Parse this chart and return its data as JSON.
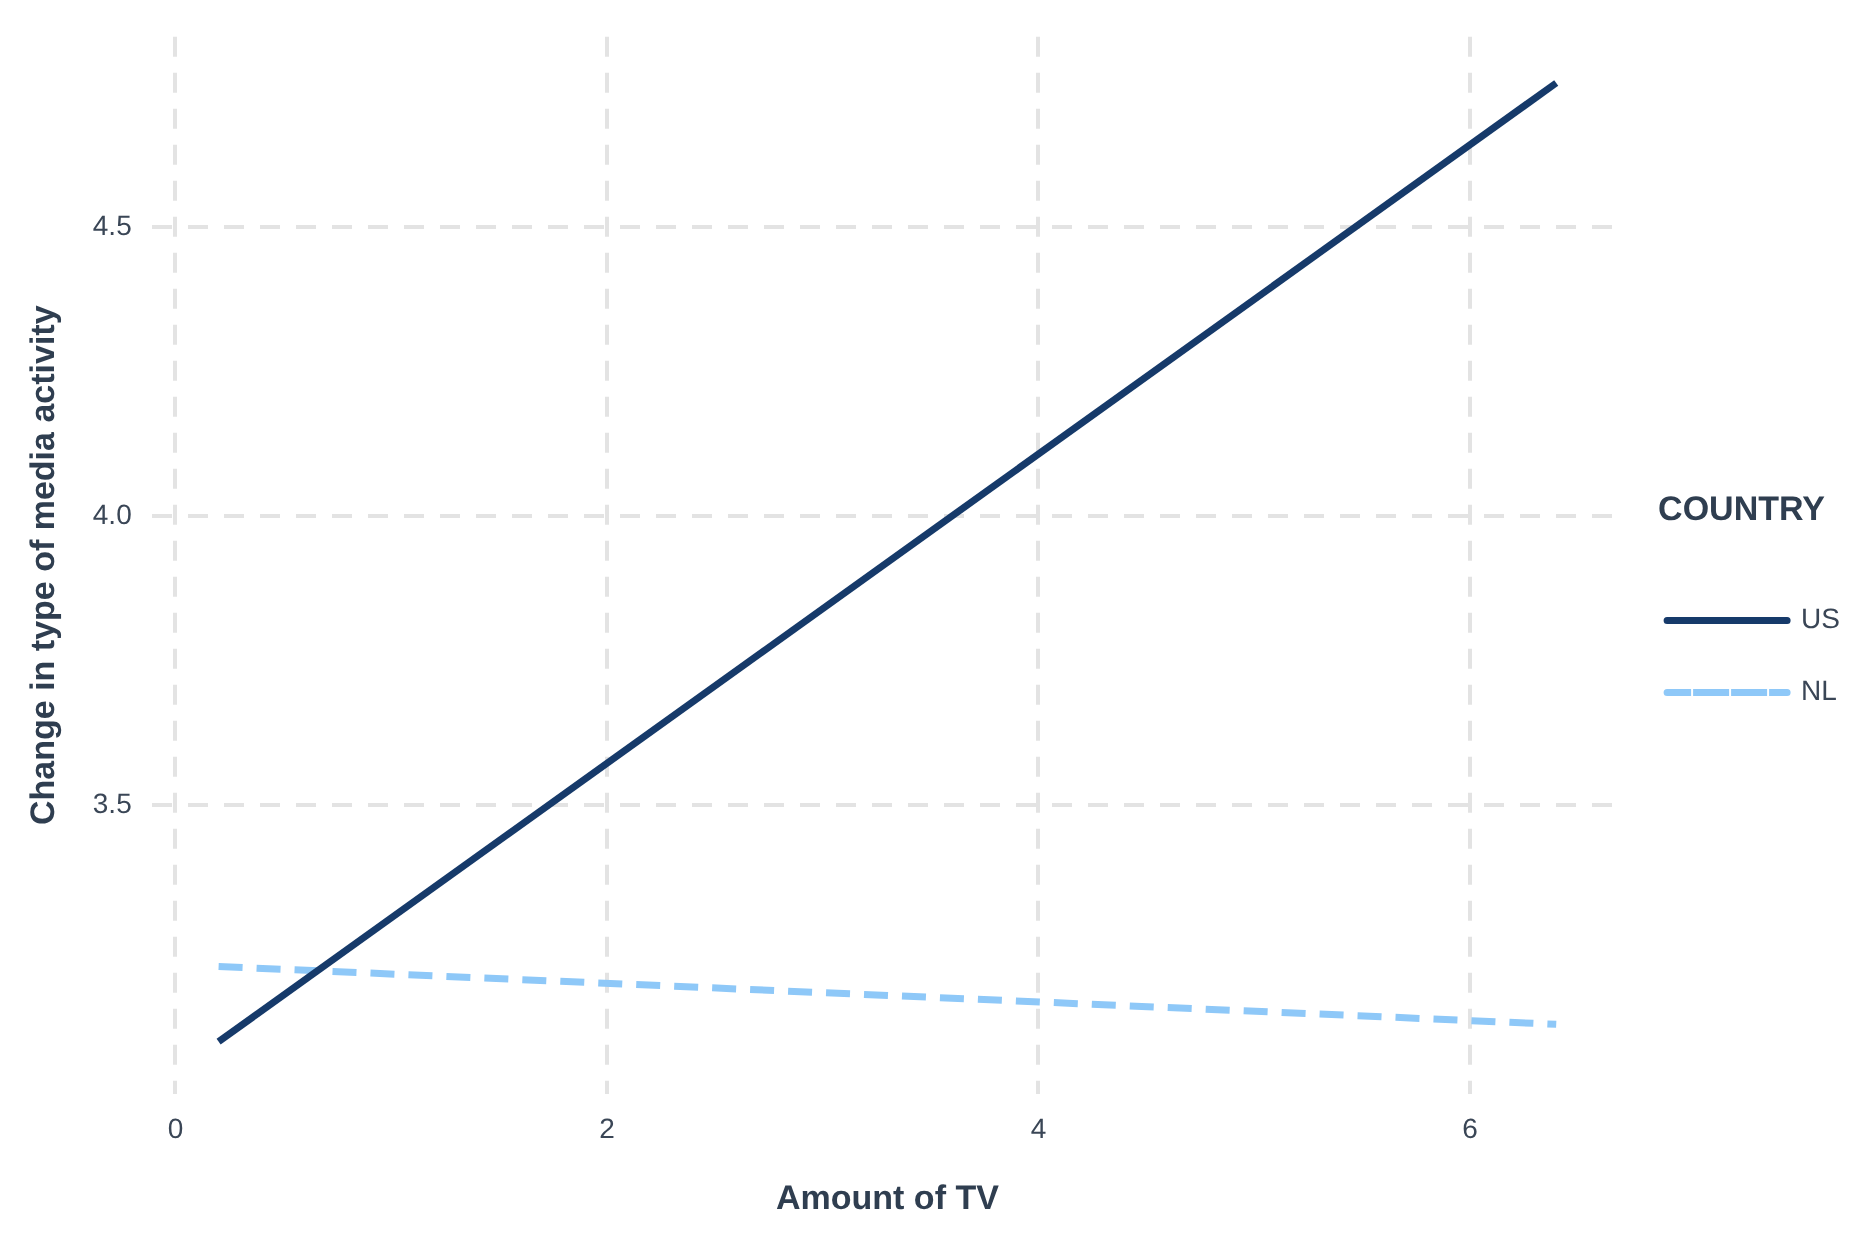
{
  "chart_data": {
    "type": "line",
    "xlabel": "Amount of TV",
    "ylabel": "Change in type of media activity",
    "legend_title": "COUNTRY",
    "legend": "right",
    "grid": true,
    "marker": "none",
    "xlim": [
      -0.11,
      6.71
    ],
    "xticks": [
      0,
      2,
      4,
      6
    ],
    "ylim": [
      3.0,
      4.83
    ],
    "yticks": [
      3.5,
      {
        "value": 4,
        "label": "4.0"
      },
      4.5
    ],
    "x": [
      0.2,
      6.4
    ],
    "series": [
      {
        "name": "US",
        "color": "#163a6a",
        "values": [
          3.09,
          4.75
        ],
        "line_style": "solid"
      },
      {
        "name": "NL",
        "color": "#8ec8f8",
        "values": [
          3.22,
          3.12
        ],
        "line_style": "dashed"
      }
    ]
  }
}
